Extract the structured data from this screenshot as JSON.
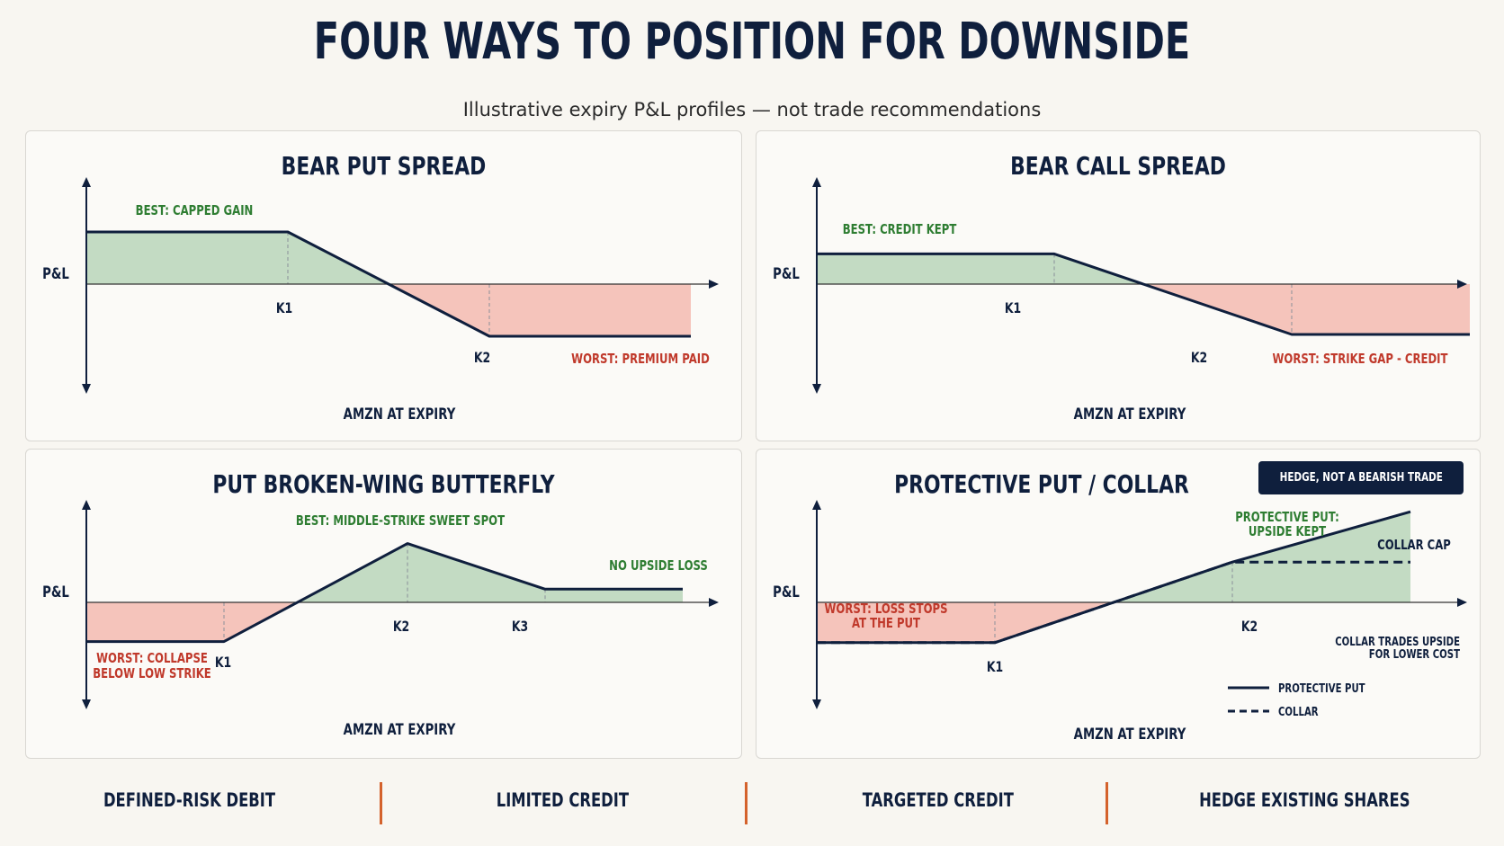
{
  "title": "FOUR WAYS TO POSITION FOR DOWNSIDE",
  "subtitle": "Illustrative expiry P&L profiles — not trade recommendations",
  "colors": {
    "navy": "#0f1f3d",
    "gain_fill": "#c3dbc3",
    "loss_fill": "#f5c4bb",
    "gain_text": "#2e7d32",
    "loss_text": "#c0392b",
    "accent": "#d4622c"
  },
  "chart_data": [
    {
      "type": "line",
      "title": "BEAR PUT SPREAD",
      "ylabel": "P&L",
      "xlabel": "AMZN AT EXPIRY",
      "x": [
        0,
        4,
        8,
        12
      ],
      "series": [
        {
          "values": [
            1,
            1,
            -1,
            -1
          ]
        }
      ],
      "strikes": [
        {
          "label": "K1",
          "x": 4
        },
        {
          "label": "K2",
          "x": 8
        }
      ],
      "annotations": [
        "BEST: CAPPED GAIN",
        "WORST: PREMIUM PAID"
      ],
      "ylim": [
        -2,
        2
      ]
    },
    {
      "type": "line",
      "title": "BEAR CALL SPREAD",
      "ylabel": "P&L",
      "xlabel": "AMZN AT EXPIRY",
      "x": [
        0,
        4,
        8,
        11
      ],
      "series": [
        {
          "values": [
            0.6,
            0.6,
            -1,
            -1
          ]
        }
      ],
      "strikes": [
        {
          "label": "K1",
          "x": 4
        },
        {
          "label": "K2",
          "x": 8
        }
      ],
      "annotations": [
        "BEST: CREDIT KEPT",
        "WORST: STRIKE GAP - CREDIT"
      ],
      "ylim": [
        -2,
        2
      ]
    },
    {
      "type": "line",
      "title": "PUT BROKEN-WING BUTTERFLY",
      "ylabel": "P&L",
      "xlabel": "AMZN AT EXPIRY",
      "x": [
        0,
        3,
        7,
        10,
        13
      ],
      "series": [
        {
          "values": [
            -0.8,
            -0.8,
            1.2,
            0.27,
            0.27
          ]
        }
      ],
      "strikes": [
        {
          "label": "K1",
          "x": 3
        },
        {
          "label": "K2",
          "x": 7
        },
        {
          "label": "K3",
          "x": 10
        }
      ],
      "annotations": [
        "BEST: MIDDLE-STRIKE SWEET SPOT",
        "NO UPSIDE LOSS",
        "WORST: COLLAPSE",
        "BELOW LOW STRIKE"
      ],
      "ylim": [
        -2,
        2
      ]
    },
    {
      "type": "line",
      "title": "PROTECTIVE PUT / COLLAR",
      "ylabel": "P&L",
      "xlabel": "AMZN AT EXPIRY",
      "x": [
        0,
        3,
        7,
        10
      ],
      "series": [
        {
          "name": "PROTECTIVE PUT",
          "values": [
            -0.8,
            -0.8,
            0.8,
            1.8
          ]
        },
        {
          "name": "COLLAR",
          "values": [
            -0.8,
            -0.8,
            0.8,
            0.8
          ]
        }
      ],
      "strikes": [
        {
          "label": "K1",
          "x": 3
        },
        {
          "label": "K2",
          "x": 7
        }
      ],
      "annotations": [
        "PROTECTIVE PUT:",
        "UPSIDE KEPT",
        "COLLAR CAP",
        "WORST: LOSS STOPS",
        "AT THE PUT",
        "COLLAR TRADES UPSIDE",
        "FOR LOWER COST"
      ],
      "badge": "HEDGE, NOT A BEARISH TRADE",
      "ylim": [
        -2,
        2
      ]
    }
  ],
  "footer": [
    "DEFINED-RISK DEBIT",
    "LIMITED CREDIT",
    "TARGETED CREDIT",
    "HEDGE EXISTING SHARES"
  ]
}
